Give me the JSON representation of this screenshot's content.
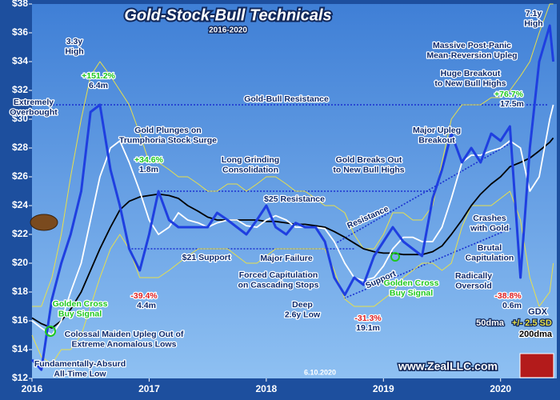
{
  "chart_data": {
    "type": "line",
    "title": "Gold-Stock-Bull Technicals",
    "subtitle": "2016-2020",
    "date_stamp": "6.10.2020",
    "source": "www.ZealLLC.com",
    "xlim": [
      2016,
      2020.48
    ],
    "xticks": [
      2016,
      2017,
      2018,
      2019,
      2020
    ],
    "ylim": [
      12,
      38
    ],
    "yticks": [
      {
        "value": 12,
        "label": "$12"
      },
      {
        "value": 14,
        "label": "$14"
      },
      {
        "value": 16,
        "label": "$16"
      },
      {
        "value": 18,
        "label": "$18"
      },
      {
        "value": 20,
        "label": "$20"
      },
      {
        "value": 22,
        "label": "$22"
      },
      {
        "value": 24,
        "label": "$24"
      },
      {
        "value": 26,
        "label": "$26"
      },
      {
        "value": 28,
        "label": "$28"
      },
      {
        "value": 30,
        "label": "$30"
      },
      {
        "value": 32,
        "label": "$32"
      },
      {
        "value": 34,
        "label": "$34"
      },
      {
        "value": 36,
        "label": "$36"
      },
      {
        "value": 38,
        "label": "$38"
      }
    ],
    "x": [
      2016.0,
      2016.08,
      2016.17,
      2016.25,
      2016.33,
      2016.42,
      2016.5,
      2016.58,
      2016.67,
      2016.75,
      2016.83,
      2016.92,
      2017.0,
      2017.08,
      2017.17,
      2017.25,
      2017.33,
      2017.42,
      2017.5,
      2017.58,
      2017.67,
      2017.75,
      2017.83,
      2017.92,
      2018.0,
      2018.08,
      2018.17,
      2018.25,
      2018.33,
      2018.42,
      2018.5,
      2018.58,
      2018.67,
      2018.75,
      2018.83,
      2018.92,
      2019.0,
      2019.08,
      2019.17,
      2019.25,
      2019.33,
      2019.42,
      2019.5,
      2019.58,
      2019.67,
      2019.75,
      2019.83,
      2019.92,
      2020.0,
      2020.08,
      2020.17,
      2020.25,
      2020.33,
      2020.42,
      2020.45
    ],
    "series": [
      {
        "name": "+/- 2.5 SD",
        "color": "#e8e04a",
        "values": [
          17,
          17,
          19,
          22,
          26,
          30,
          33,
          34,
          33,
          32,
          31,
          29,
          27,
          27,
          26.5,
          26,
          26,
          25.5,
          25,
          25,
          25.5,
          25.5,
          25,
          25.5,
          26,
          26,
          25.5,
          25,
          25,
          24.5,
          24,
          24,
          23.5,
          22,
          21,
          21,
          22,
          23.5,
          23.5,
          23,
          23,
          24,
          27,
          30,
          31,
          31,
          31,
          31.5,
          31.5,
          32,
          33,
          34,
          36,
          38,
          38
        ],
        "lower": [
          15,
          13.5,
          13,
          14,
          14,
          15,
          17,
          19,
          21,
          22,
          21,
          19,
          19,
          19,
          19.5,
          20,
          20.5,
          21,
          21,
          21,
          21,
          20.5,
          20,
          20,
          20.5,
          21,
          21,
          21,
          21,
          21,
          21,
          19.5,
          17.5,
          17,
          17,
          17,
          17.5,
          18,
          19,
          19.5,
          20,
          20,
          19.5,
          20,
          22.5,
          24,
          24,
          24,
          24.5,
          25,
          23,
          19,
          17,
          18,
          20
        ]
      },
      {
        "name": "200dma",
        "color": "#000000",
        "values": [
          16.2,
          15.8,
          15.5,
          16,
          16.8,
          18,
          19.5,
          21,
          22.5,
          23.7,
          24.3,
          24.6,
          24.7,
          24.8,
          24.7,
          24.5,
          24,
          23.6,
          23.2,
          23,
          23,
          23,
          23,
          23,
          22.9,
          22.9,
          22.8,
          22.7,
          22.7,
          22.6,
          22.5,
          22.2,
          21.8,
          21.4,
          21,
          20.8,
          20.7,
          20.7,
          20.6,
          20.6,
          20.6,
          20.8,
          21.2,
          22,
          23,
          24,
          24.8,
          25.5,
          26,
          26.7,
          27,
          27.3,
          27.8,
          28.4,
          28.7
        ]
      },
      {
        "name": "50dma",
        "color": "#ffffff",
        "values": [
          16,
          15.5,
          15,
          16,
          18,
          20,
          23,
          26,
          28,
          28.5,
          27,
          25,
          23,
          22,
          22.5,
          23.5,
          23,
          22.8,
          22.5,
          22.8,
          23,
          23,
          22.6,
          22.5,
          23,
          23.3,
          23,
          22.5,
          22.5,
          22.5,
          22.4,
          21.5,
          20,
          19,
          18.8,
          19,
          19.8,
          21,
          21.8,
          21.8,
          21.5,
          21.5,
          22.5,
          24.5,
          27,
          27.5,
          27.5,
          27.8,
          28,
          28.5,
          28,
          25,
          26,
          30,
          31
        ]
      },
      {
        "name": "GDX",
        "color": "#1f3fe0",
        "values": [
          13.3,
          12.6,
          17.5,
          20,
          22,
          25,
          30.5,
          31,
          26.5,
          24,
          21,
          19.5,
          22,
          25,
          23,
          22.5,
          22.5,
          22.5,
          22.5,
          23.5,
          23,
          22.5,
          22,
          23,
          24,
          22.5,
          22,
          22.8,
          22.5,
          22.5,
          21.5,
          19,
          17.8,
          19,
          18.5,
          20.5,
          21.5,
          22.5,
          21.5,
          21,
          20.5,
          24.5,
          26.5,
          29,
          27,
          28,
          27,
          29,
          28.5,
          29.5,
          19,
          28,
          34,
          36.5,
          34
        ]
      }
    ],
    "reference_lines": [
      {
        "value": 31,
        "label": "Gold-Bull Resistance"
      },
      {
        "value": 25,
        "label": "$25 Resistance"
      },
      {
        "value": 21,
        "label": "$21 Support"
      }
    ],
    "annotations": [
      {
        "lines": [
          "3.3y",
          "High"
        ]
      },
      {
        "lines": [
          "+151.2%"
        ],
        "color": "#1ec81e"
      },
      {
        "lines": [
          "6.4m"
        ]
      },
      {
        "lines": [
          "Extremely",
          "Overbought"
        ]
      },
      {
        "lines": [
          "Gold Plunges on",
          "Trumphoria Stock Surge"
        ]
      },
      {
        "lines": [
          "+34.6%"
        ],
        "color": "#1ec81e"
      },
      {
        "lines": [
          "1.8m"
        ]
      },
      {
        "lines": [
          "Long Grinding",
          "Consolidation"
        ]
      },
      {
        "lines": [
          "Major Failure"
        ]
      },
      {
        "lines": [
          "Forced Capitulation",
          "on Cascading Stops"
        ]
      },
      {
        "lines": [
          "Deep",
          "2.6y Low"
        ]
      },
      {
        "lines": [
          "-31.3%"
        ],
        "color": "#e02020"
      },
      {
        "lines": [
          "19.1m"
        ]
      },
      {
        "lines": [
          "Resistance"
        ]
      },
      {
        "lines": [
          "Support"
        ]
      },
      {
        "lines": [
          "Golden Cross",
          "Buy Signal"
        ],
        "color": "#1ec81e"
      },
      {
        "lines": [
          "Gold Breaks Out",
          "to New Bull Highs"
        ]
      },
      {
        "lines": [
          "Major Upleg",
          "Breakout"
        ]
      },
      {
        "lines": [
          "Massive Post-Panic",
          "Mean-Reversion Upleg"
        ]
      },
      {
        "lines": [
          "7.1y",
          "High"
        ]
      },
      {
        "lines": [
          "Huge Breakout",
          "to New Bull Highs"
        ]
      },
      {
        "lines": [
          "+76.7%"
        ],
        "color": "#1ec81e"
      },
      {
        "lines": [
          "17.5m"
        ]
      },
      {
        "lines": [
          "Crashes",
          "with Gold"
        ]
      },
      {
        "lines": [
          "Brutal",
          "Capitulation"
        ]
      },
      {
        "lines": [
          "Radically",
          "Oversold"
        ]
      },
      {
        "lines": [
          "-38.8%"
        ],
        "color": "#e02020"
      },
      {
        "lines": [
          "0.6m"
        ]
      },
      {
        "lines": [
          "Golden Cross",
          "Buy Signal"
        ],
        "color": "#1ec81e"
      },
      {
        "lines": [
          "Colossal Maiden Upleg Out of",
          "Extreme Anomalous Lows"
        ]
      },
      {
        "lines": [
          "Fundamentally-Absurd",
          "All-Time Low"
        ]
      },
      {
        "lines": [
          "-39.4%"
        ],
        "color": "#e02020"
      },
      {
        "lines": [
          "4.4m"
        ]
      }
    ]
  }
}
